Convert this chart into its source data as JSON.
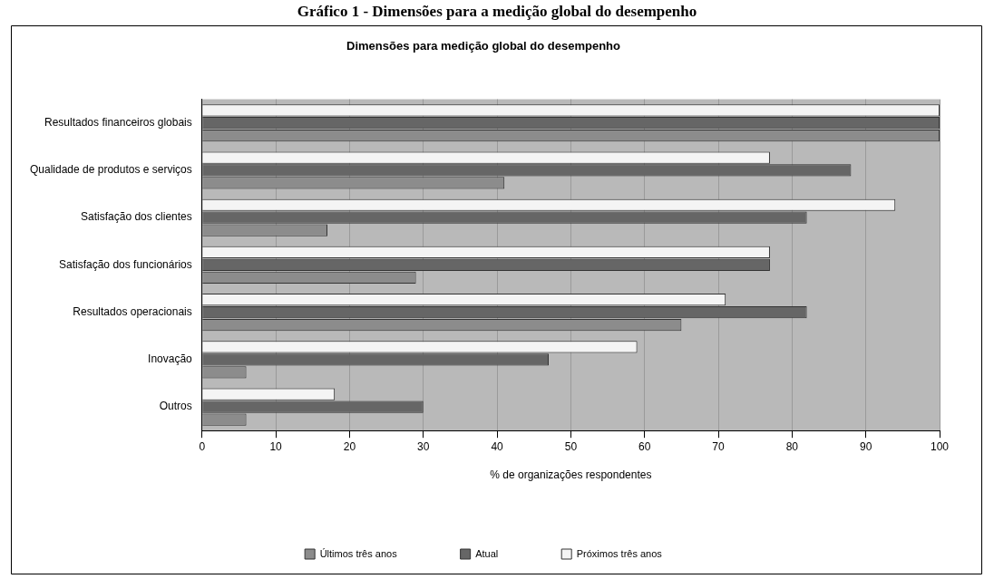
{
  "chart_data": {
    "type": "bar",
    "orientation": "horizontal",
    "title": "Dimensões para medição global do desempenho",
    "xlabel": "% de organizações respondentes",
    "annotations": [
      "Gráfico 1 - Dimensões para a medição global do desempenho"
    ],
    "categories": [
      "Resultados financeiros globais",
      "Qualidade de produtos e serviços",
      "Satisfação dos clientes",
      "Satisfação dos funcionários",
      "Resultados operacionais",
      "Inovação",
      "Outros"
    ],
    "series": [
      {
        "name": "Últimos três anos",
        "color": "#8c8c8c",
        "values": [
          100,
          41,
          17,
          29,
          65,
          6,
          6
        ]
      },
      {
        "name": "Atual",
        "color": "#666666",
        "values": [
          100,
          88,
          82,
          77,
          82,
          47,
          30
        ]
      },
      {
        "name": "Próximos três anos",
        "color": "#f4f4f4",
        "values": [
          100,
          77,
          94,
          77,
          71,
          59,
          18
        ]
      }
    ],
    "xlim": [
      0,
      100
    ],
    "xticks": [
      0,
      10,
      20,
      30,
      40,
      50,
      60,
      70,
      80,
      90,
      100
    ],
    "grid": "x",
    "legend": "bottom"
  }
}
